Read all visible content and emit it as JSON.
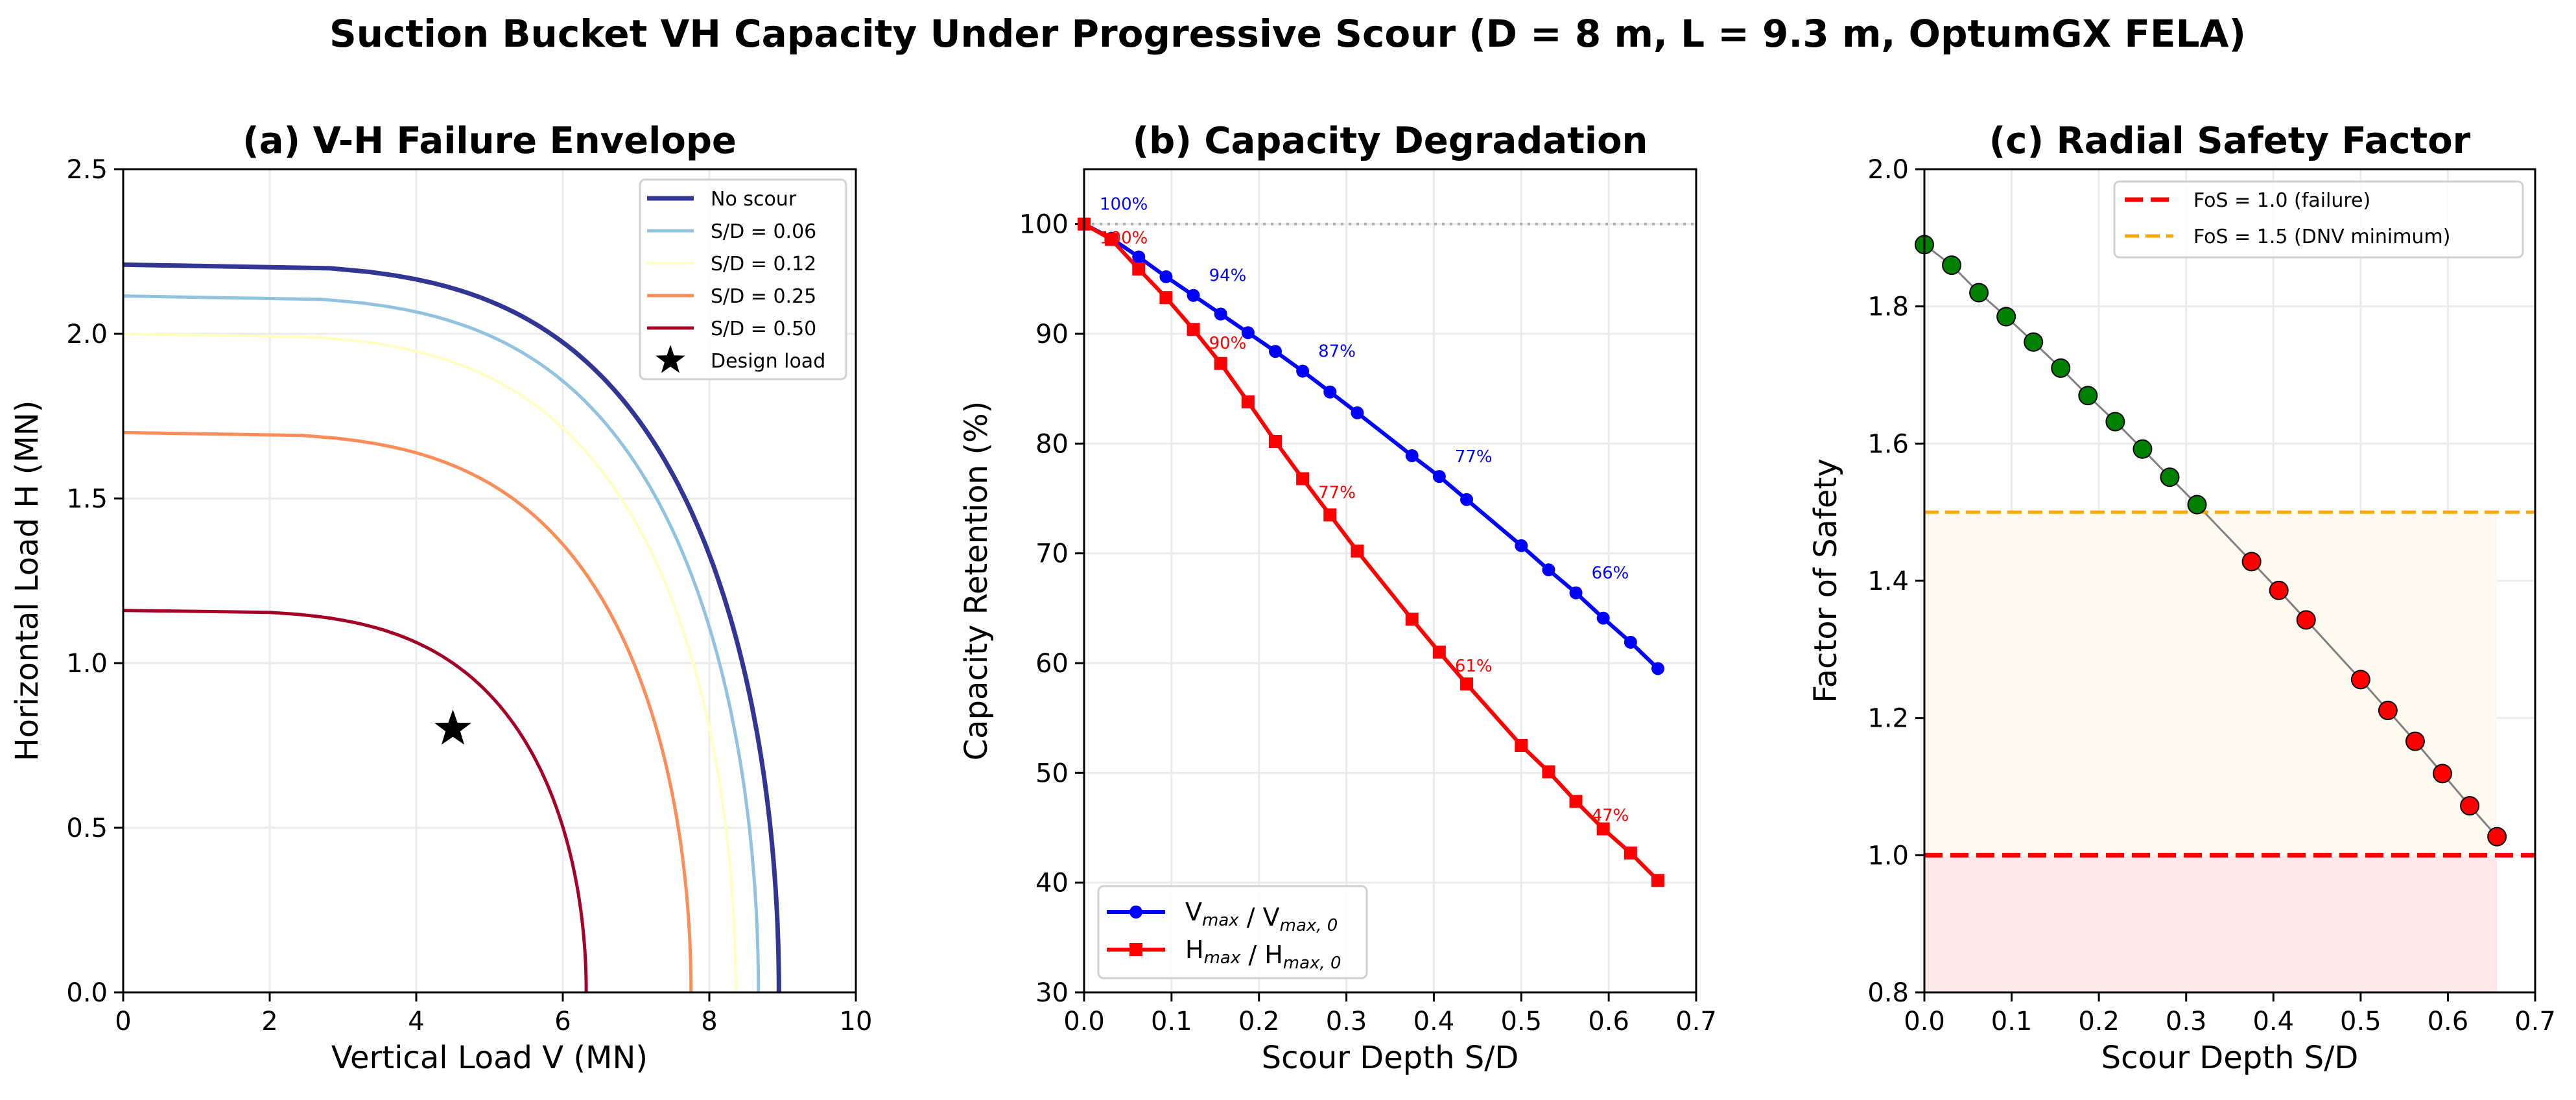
{
  "suptitle": "Suction Bucket VH Capacity Under Progressive Scour (D = 8 m, L = 9.3 m, OptumGX FELA)",
  "chart_data": [
    {
      "type": "line",
      "title": "(a) V-H Failure Envelope",
      "xlabel": "Vertical Load V (MN)",
      "ylabel": "Horizontal Load H (MN)",
      "xlim": [
        0,
        10
      ],
      "ylim": [
        0,
        2.5
      ],
      "xticks": [
        "0",
        "2",
        "4",
        "6",
        "8",
        "10"
      ],
      "yticks": [
        "0.0",
        "0.5",
        "1.0",
        "1.5",
        "2.0",
        "2.5"
      ],
      "grid": true,
      "legend_position": "top-right",
      "series": [
        {
          "name": "No scour",
          "color": "#313695",
          "Vmax": 8.95,
          "Hmax": 2.21
        },
        {
          "name": "S/D = 0.06",
          "color": "#91c3e0",
          "Vmax": 8.67,
          "Hmax": 2.115
        },
        {
          "name": "S/D = 0.12",
          "color": "#ffffbf",
          "Vmax": 8.36,
          "Hmax": 2.0
        },
        {
          "name": "S/D = 0.25",
          "color": "#fc8d59",
          "Vmax": 7.75,
          "Hmax": 1.7
        },
        {
          "name": "S/D = 0.50",
          "color": "#a50026",
          "Vmax": 6.32,
          "Hmax": 1.16
        }
      ],
      "design_load": {
        "name": "Design load",
        "V": 4.5,
        "H": 0.8,
        "marker": "star",
        "color": "#000000"
      }
    },
    {
      "type": "line",
      "title": "(b) Capacity Degradation",
      "xlabel": "Scour Depth S/D",
      "ylabel": "Capacity Retention (%)",
      "xlim": [
        0,
        0.7
      ],
      "ylim": [
        30,
        105
      ],
      "xticks": [
        "0.0",
        "0.1",
        "0.2",
        "0.3",
        "0.4",
        "0.5",
        "0.6",
        "0.7"
      ],
      "yticks": [
        "30",
        "40",
        "50",
        "60",
        "70",
        "80",
        "90",
        "100"
      ],
      "grid": true,
      "legend_position": "bottom-left",
      "reference_line": {
        "y": 100,
        "style": "dotted",
        "color": "#b0b0b0"
      },
      "x": [
        0,
        0.03125,
        0.0625,
        0.09375,
        0.125,
        0.15625,
        0.1875,
        0.21875,
        0.25,
        0.28125,
        0.3125,
        0.375,
        0.40625,
        0.4375,
        0.5,
        0.53125,
        0.5625,
        0.59375,
        0.625,
        0.65625
      ],
      "series": [
        {
          "name": [
            [
              "V",
              "max"
            ],
            [
              " / V",
              "max, 0"
            ]
          ],
          "color": "#0000ff",
          "marker": "circle",
          "values": [
            100,
            98.7,
            97.0,
            95.2,
            93.5,
            91.8,
            90.1,
            88.4,
            86.6,
            84.7,
            82.8,
            78.9,
            77.0,
            74.9,
            70.7,
            68.5,
            66.4,
            64.1,
            61.9,
            59.5
          ],
          "annotations": [
            {
              "i": 0,
              "text": "100%"
            },
            {
              "i": 4,
              "text": "94%"
            },
            {
              "i": 8,
              "text": "87%"
            },
            {
              "i": 12,
              "text": "77%"
            },
            {
              "i": 16,
              "text": "66%"
            }
          ]
        },
        {
          "name": [
            [
              "H",
              "max"
            ],
            [
              " / H",
              "max, 0"
            ]
          ],
          "color": "#ff0000",
          "marker": "square",
          "values": [
            100,
            98.6,
            95.9,
            93.3,
            90.4,
            87.3,
            83.8,
            80.2,
            76.8,
            73.5,
            70.2,
            64.0,
            61.0,
            58.1,
            52.5,
            50.1,
            47.4,
            44.9,
            42.7,
            40.2
          ],
          "annotations": [
            {
              "i": 0,
              "text": "100%"
            },
            {
              "i": 4,
              "text": "90%"
            },
            {
              "i": 8,
              "text": "77%"
            },
            {
              "i": 12,
              "text": "61%"
            },
            {
              "i": 16,
              "text": "47%"
            }
          ]
        }
      ]
    },
    {
      "type": "scatter",
      "title": "(c) Radial Safety Factor",
      "xlabel": "Scour Depth S/D",
      "ylabel": "Factor of Safety",
      "xlim": [
        0,
        0.7
      ],
      "ylim": [
        0.8,
        2.0
      ],
      "xticks": [
        "0.0",
        "0.1",
        "0.2",
        "0.3",
        "0.4",
        "0.5",
        "0.6",
        "0.7"
      ],
      "yticks": [
        "0.8",
        "1.0",
        "1.2",
        "1.4",
        "1.6",
        "1.8",
        "2.0"
      ],
      "grid": true,
      "legend_position": "top-right",
      "x": [
        0,
        0.03125,
        0.0625,
        0.09375,
        0.125,
        0.15625,
        0.1875,
        0.21875,
        0.25,
        0.28125,
        0.3125,
        0.375,
        0.40625,
        0.4375,
        0.5,
        0.53125,
        0.5625,
        0.59375,
        0.625,
        0.65625
      ],
      "values": [
        1.89,
        1.86,
        1.82,
        1.785,
        1.748,
        1.71,
        1.67,
        1.632,
        1.592,
        1.551,
        1.511,
        1.428,
        1.386,
        1.343,
        1.256,
        1.211,
        1.166,
        1.119,
        1.072,
        1.027
      ],
      "color_ok": "#008000",
      "color_low": "#ff0000",
      "line_color": "#808080",
      "zones": [
        {
          "from": 0.8,
          "to": 1.0,
          "color": "#fde8ea"
        },
        {
          "from": 1.0,
          "to": 1.5,
          "color": "#fffaf0"
        }
      ],
      "thresholds": [
        {
          "y": 1.0,
          "name": "FoS = 1.0 (failure)",
          "color": "#ff0000"
        },
        {
          "y": 1.5,
          "name": "FoS = 1.5 (DNV minimum)",
          "color": "#ffa500"
        }
      ]
    }
  ]
}
